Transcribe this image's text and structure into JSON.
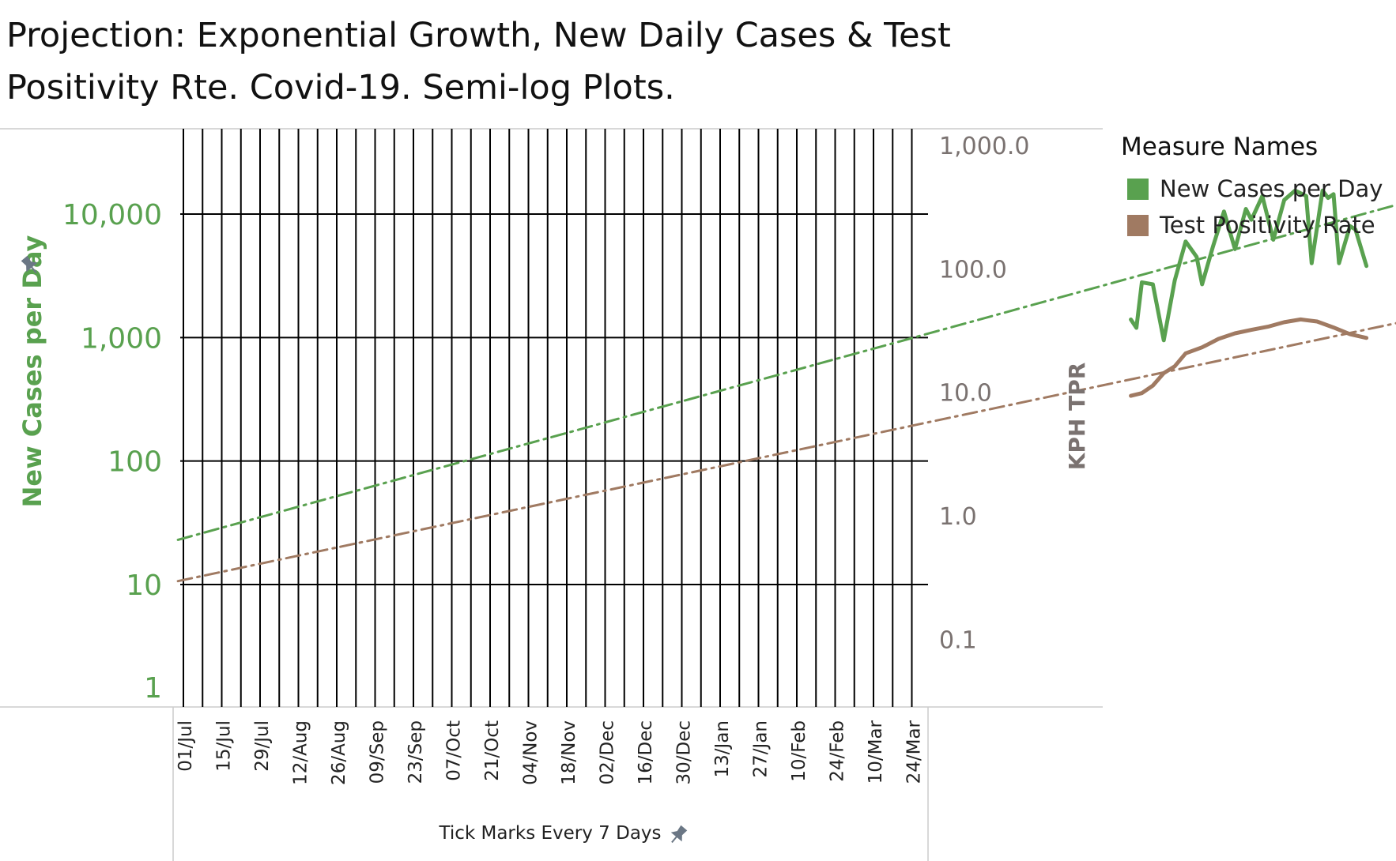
{
  "title": "Projection: Exponential Growth,  New Daily Cases & Test Positivity Rte.  Covid-19.  Semi-log Plots.",
  "legend": {
    "title": "Measure Names",
    "items": [
      {
        "label": "New Cases per Day",
        "color": "#59a14f"
      },
      {
        "label": "Test Positivity Rate",
        "color": "#a07a62"
      }
    ]
  },
  "chart_data": {
    "type": "line",
    "scale": "log",
    "grid": true,
    "legend_position": "right",
    "xlabel": "Tick Marks Every 7 Days",
    "x_ticks": [
      "01/Jul",
      "15/Jul",
      "29/Jul",
      "12/Aug",
      "26/Aug",
      "09/Sep",
      "23/Sep",
      "07/Oct",
      "21/Oct",
      "04/Nov",
      "18/Nov",
      "02/Dec",
      "16/Dec",
      "30/Dec",
      "13/Jan",
      "27/Jan",
      "10/Feb",
      "24/Feb",
      "10/Mar",
      "24/Mar"
    ],
    "y_left": {
      "label": "New Cases per Day",
      "ticks": [
        "1",
        "10",
        "100",
        "1,000",
        "10,000"
      ],
      "tick_values": [
        1,
        10,
        100,
        1000,
        10000
      ],
      "range": [
        1,
        50000
      ]
    },
    "y_right": {
      "label": "KPH TPR",
      "ticks": [
        "0.1",
        "1.0",
        "10.0",
        "100.0",
        "1,000.0"
      ],
      "tick_values": [
        0.1,
        1,
        10,
        100,
        1000
      ],
      "range": [
        0.02,
        1000
      ]
    },
    "series": [
      {
        "name": "New Cases per Day",
        "axis": "left",
        "color": "#59a14f",
        "points": [
          [
            "2020-12-21",
            1400
          ],
          [
            "2020-12-22",
            1200
          ],
          [
            "2020-12-23",
            2800
          ],
          [
            "2020-12-25",
            2700
          ],
          [
            "2020-12-27",
            950
          ],
          [
            "2020-12-29",
            2900
          ],
          [
            "2020-12-31",
            6000
          ],
          [
            "2021-01-02",
            4500
          ],
          [
            "2021-01-03",
            2700
          ],
          [
            "2021-01-05",
            5500
          ],
          [
            "2021-01-07",
            10500
          ],
          [
            "2021-01-09",
            5200
          ],
          [
            "2021-01-11",
            11000
          ],
          [
            "2021-01-12",
            9000
          ],
          [
            "2021-01-14",
            14000
          ],
          [
            "2021-01-16",
            6200
          ],
          [
            "2021-01-18",
            13000
          ],
          [
            "2021-01-20",
            15500
          ],
          [
            "2021-01-22",
            14000
          ],
          [
            "2021-01-23",
            4000
          ],
          [
            "2021-01-25",
            15500
          ],
          [
            "2021-01-26",
            13500
          ],
          [
            "2021-01-27",
            14500
          ],
          [
            "2021-01-28",
            4000
          ],
          [
            "2021-01-30",
            8000
          ],
          [
            "2021-01-31",
            7500
          ],
          [
            "2021-02-02",
            3800
          ]
        ]
      },
      {
        "name": "Test Positivity Rate",
        "axis": "right",
        "color": "#a07a62",
        "points": [
          [
            "2020-12-21",
            9.5
          ],
          [
            "2020-12-23",
            10
          ],
          [
            "2020-12-25",
            11.5
          ],
          [
            "2020-12-27",
            14.5
          ],
          [
            "2020-12-29",
            16.5
          ],
          [
            "2020-12-31",
            21
          ],
          [
            "2021-01-03",
            23.5
          ],
          [
            "2021-01-06",
            27.5
          ],
          [
            "2021-01-09",
            30.5
          ],
          [
            "2021-01-12",
            32.5
          ],
          [
            "2021-01-15",
            34.5
          ],
          [
            "2021-01-18",
            37.5
          ],
          [
            "2021-01-21",
            39.5
          ],
          [
            "2021-01-24",
            38
          ],
          [
            "2021-01-27",
            34
          ],
          [
            "2021-01-30",
            30
          ],
          [
            "2021-02-02",
            28
          ]
        ]
      },
      {
        "name": "New Cases projection",
        "axis": "left",
        "color": "#59a14f",
        "dashed": true,
        "points": [
          [
            "2020-06-30",
            23
          ],
          [
            "2021-03-30",
            49000
          ]
        ]
      },
      {
        "name": "TPR projection",
        "axis": "right",
        "color": "#a07a62",
        "dashed": true,
        "points": [
          [
            "2020-06-30",
            0.3
          ],
          [
            "2021-03-30",
            110
          ]
        ]
      }
    ]
  }
}
